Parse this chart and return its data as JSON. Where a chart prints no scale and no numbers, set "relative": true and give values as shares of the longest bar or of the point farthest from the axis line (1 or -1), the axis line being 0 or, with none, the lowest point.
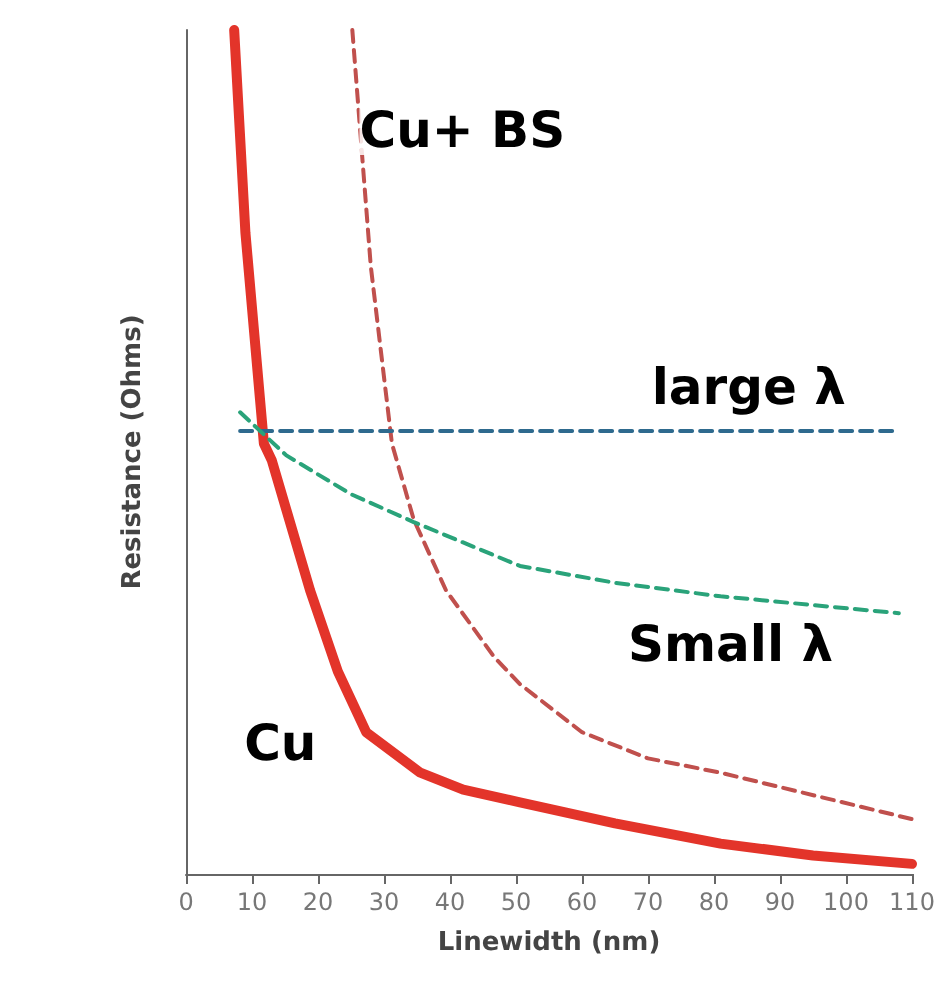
{
  "chart_data": {
    "type": "line",
    "relative": true,
    "xlabel": "Linewidth (nm)",
    "ylabel": "Resistance (Ohms)",
    "xlim": [
      0,
      110
    ],
    "xticks": [
      0,
      10,
      20,
      30,
      40,
      50,
      60,
      70,
      80,
      90,
      100,
      110
    ],
    "grid": false,
    "legend": false,
    "marker": "none",
    "series": [
      {
        "name": "Cu",
        "color": "#e3342a",
        "line_style": "solid",
        "x": [
          7.3,
          9,
          11.8,
          13,
          18.8,
          23,
          27.3,
          35.5,
          42,
          50.6,
          65,
          81,
          95,
          110
        ],
        "values": [
          1.0,
          0.76,
          0.51,
          0.49,
          0.336,
          0.24,
          0.168,
          0.12,
          0.1,
          0.085,
          0.06,
          0.036,
          0.022,
          0.012
        ]
      },
      {
        "name": "Cu+ BS",
        "color": "#c0504d",
        "line_style": "dashed",
        "x": [
          25.2,
          28,
          31.2,
          34.5,
          39.4,
          46.7,
          50.6,
          60,
          70,
          81,
          110
        ],
        "values": [
          1.0,
          0.72,
          0.51,
          0.42,
          0.336,
          0.257,
          0.225,
          0.168,
          0.137,
          0.12,
          0.065
        ]
      },
      {
        "name": "large λ",
        "color": "#2e6a8e",
        "line_style": "dashed",
        "x": [
          8.2,
          108
        ],
        "values": [
          0.525,
          0.525
        ]
      },
      {
        "name": "Small λ",
        "color": "#2aa37a",
        "line_style": "dashed",
        "x": [
          8.2,
          15.2,
          25,
          34.5,
          50.6,
          65,
          81,
          108
        ],
        "values": [
          0.547,
          0.496,
          0.45,
          0.417,
          0.365,
          0.345,
          0.329,
          0.309
        ]
      }
    ]
  }
}
